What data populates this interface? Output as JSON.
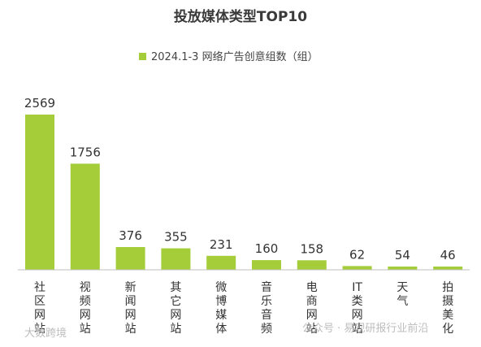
{
  "chart_data": {
    "type": "bar",
    "title": "投放媒体类型TOP10",
    "legend": {
      "label": "2024.1-3 网络广告创意组数（组）",
      "position": "top"
    },
    "categories": [
      "社区网站",
      "视频网站",
      "新闻网站",
      "其它网站",
      "微博媒体",
      "音乐音频",
      "电商网站",
      "IT类网站",
      "天气",
      "拍摄美化"
    ],
    "category_lines": [
      [
        "社",
        "区",
        "网",
        "站"
      ],
      [
        "视",
        "频",
        "网",
        "站"
      ],
      [
        "新",
        "闻",
        "网",
        "站"
      ],
      [
        "其",
        "它",
        "网",
        "站"
      ],
      [
        "微",
        "博",
        "媒",
        "体"
      ],
      [
        "音",
        "乐",
        "音",
        "频"
      ],
      [
        "电",
        "商",
        "网",
        "站"
      ],
      [
        "IT",
        "类",
        "网",
        "站"
      ],
      [
        "天",
        "气"
      ],
      [
        "拍",
        "摄",
        "美",
        "化"
      ]
    ],
    "series": [
      {
        "name": "2024.1-3 网络广告创意组数（组）",
        "values": [
          2569,
          1756,
          376,
          355,
          231,
          160,
          158,
          62,
          54,
          46
        ]
      }
    ],
    "ylim": [
      0,
      2800
    ],
    "grid": false,
    "bar_color": "#a4cd39"
  },
  "watermarks": {
    "left": "大数跨境",
    "right": "公众号 · 易观研报行业前沿"
  }
}
